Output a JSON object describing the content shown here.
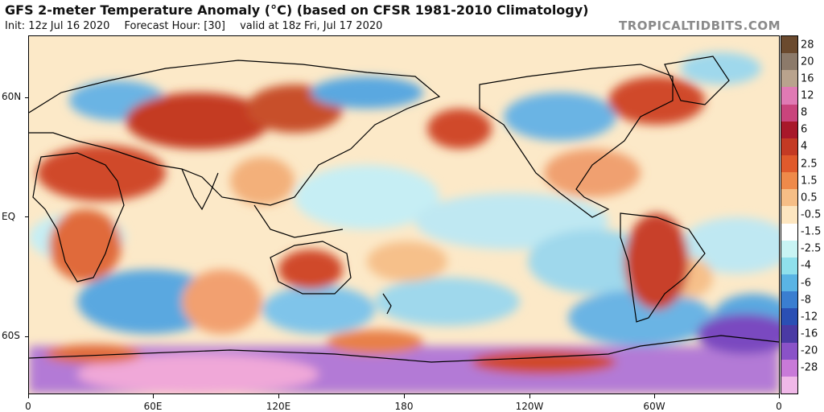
{
  "header": {
    "title": "GFS 2-meter Temperature Anomaly (°C) (based on CFSR 1981-2010 Climatology)",
    "init": "Init: 12z Jul 16 2020",
    "forecast_hour": "Forecast Hour: [30]",
    "valid": "valid at 18z Fri, Jul 17 2020"
  },
  "brand": "TROPICALTIDBITS.COM",
  "map": {
    "lat_labels": [
      "60N",
      "EQ",
      "60S"
    ],
    "lon_labels": [
      "0",
      "60E",
      "120E",
      "180",
      "120W",
      "60W",
      "0"
    ]
  },
  "legend": {
    "labels": [
      "28",
      "20",
      "16",
      "12",
      "8",
      "6",
      "4",
      "2.5",
      "1.5",
      "0.5",
      "-0.5",
      "-1.5",
      "-2.5",
      "-4",
      "-6",
      "-8",
      "-12",
      "-16",
      "-20",
      "-28"
    ],
    "colors": [
      "#6b4a2e",
      "#8c7a6a",
      "#b9a38d",
      "#e07ab4",
      "#c9447c",
      "#a8182a",
      "#c43a24",
      "#e05a2c",
      "#ef8a4a",
      "#f6be86",
      "#fde6c0",
      "#ffffff",
      "#c8f4f4",
      "#8fe0ec",
      "#5ab4e4",
      "#3a7ed0",
      "#2a4fb4",
      "#4a3aa4",
      "#8a52c8",
      "#c87ad8",
      "#f0b8e8"
    ]
  }
}
